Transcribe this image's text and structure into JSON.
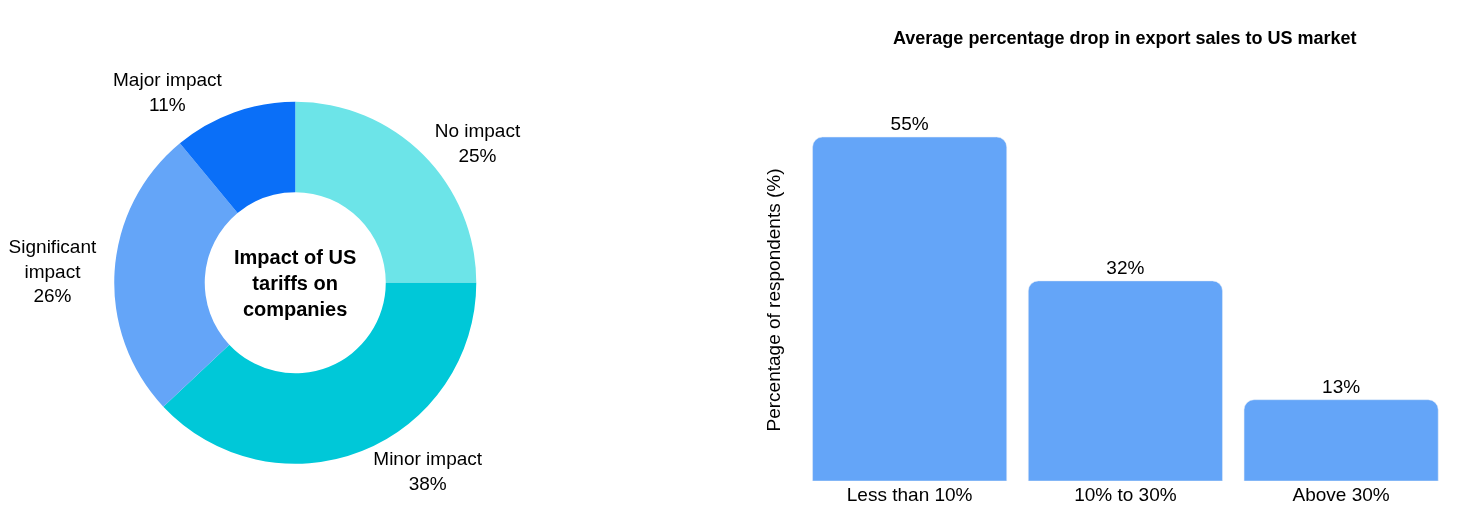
{
  "chart_data": [
    {
      "type": "donut",
      "title": "Impact of US tariffs on companies",
      "categories": [
        "No impact",
        "Minor impact",
        "Significant impact",
        "Major impact"
      ],
      "values": [
        25,
        38,
        26,
        11
      ],
      "colors": [
        "#6ce4e8",
        "#00c8d8",
        "#64a5f8",
        "#0a6ff8"
      ],
      "value_labels": [
        "25%",
        "38%",
        "26%",
        "11%"
      ]
    },
    {
      "type": "bar",
      "title": "Average percentage drop in export sales to US market",
      "ylabel": "Percentage of respondents (%)",
      "categories": [
        "Less than 10%",
        "10% to 30%",
        "Above 30%"
      ],
      "values": [
        55,
        32,
        13
      ],
      "value_labels": [
        "55%",
        "32%",
        "13%"
      ],
      "color": "#64a5f8",
      "tick_labels": "x"
    }
  ]
}
